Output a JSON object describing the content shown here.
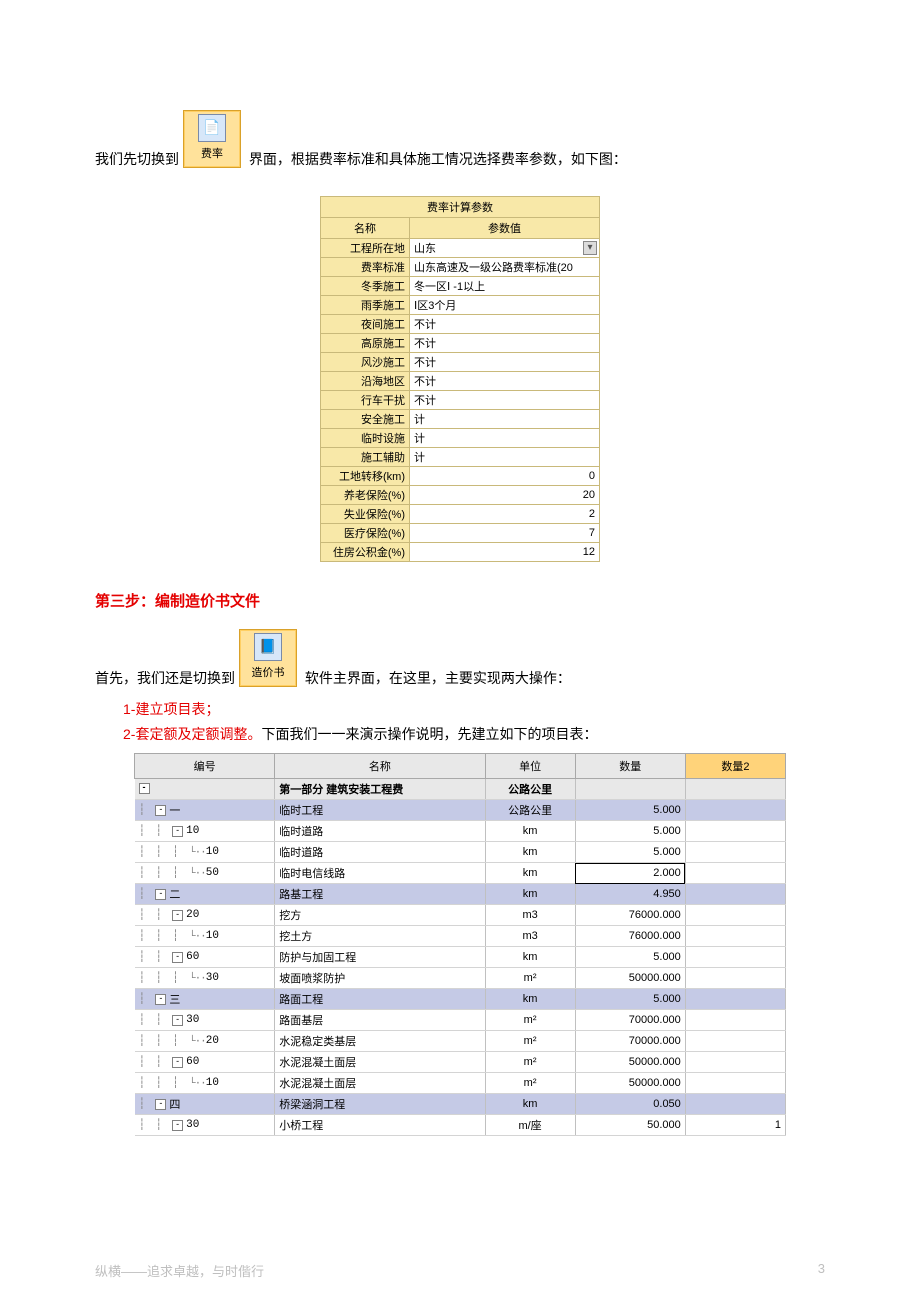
{
  "intro1_a": "我们先切换到",
  "intro1_b": " 界面，根据费率标准和具体施工情况选择费率参数，如下图：",
  "icon1_label": "费率",
  "param_title": "费率计算参数",
  "param_head_name": "名称",
  "param_head_val": "参数值",
  "params": [
    {
      "name": "工程所在地",
      "val": "山东",
      "dd": true,
      "align": "left"
    },
    {
      "name": "费率标准",
      "val": "山东高速及一级公路费率标准(20",
      "align": "left"
    },
    {
      "name": "冬季施工",
      "val": "冬一区Ⅰ -1以上",
      "align": "left"
    },
    {
      "name": "雨季施工",
      "val": "Ⅰ区3个月",
      "align": "left"
    },
    {
      "name": "夜间施工",
      "val": "不计",
      "align": "left"
    },
    {
      "name": "高原施工",
      "val": "不计",
      "align": "left"
    },
    {
      "name": "风沙施工",
      "val": "不计",
      "align": "left"
    },
    {
      "name": "沿海地区",
      "val": "不计",
      "align": "left"
    },
    {
      "name": "行车干扰",
      "val": "不计",
      "align": "left"
    },
    {
      "name": "安全施工",
      "val": "计",
      "align": "left"
    },
    {
      "name": "临时设施",
      "val": "计",
      "align": "left"
    },
    {
      "name": "施工辅助",
      "val": "计",
      "align": "left"
    },
    {
      "name": "工地转移(km)",
      "val": "0",
      "align": "right"
    },
    {
      "name": "养老保险(%)",
      "val": "20",
      "align": "right"
    },
    {
      "name": "失业保险(%)",
      "val": "2",
      "align": "right"
    },
    {
      "name": "医疗保险(%)",
      "val": "7",
      "align": "right"
    },
    {
      "name": "住房公积金(%)",
      "val": "12",
      "align": "right"
    }
  ],
  "step3_title": "第三步：编制造价书文件",
  "intro2_a": "首先，我们还是切换到",
  "icon2_label": "造价书",
  "intro2_b": " 软件主界面，在这里，主要实现两大操作：",
  "bullet1_pref": "1-",
  "bullet1": "建立项目表；",
  "bullet2_pref": "2-",
  "bullet2_a": "套定额及定额调整。",
  "bullet2_b": "下面我们一一来演示操作说明，先建立如下的项目表：",
  "tree_head": {
    "code": "编号",
    "name": "名称",
    "unit": "单位",
    "qty": "数量",
    "qty2": "数量2"
  },
  "tree_rows": [
    {
      "cls": "rtop",
      "indent": 0,
      "exp": "-",
      "codetxt": "",
      "name": "第一部分 建筑安装工程费",
      "unit": "公路公里",
      "qty": "",
      "qty2": ""
    },
    {
      "cls": "rsec",
      "indent": 1,
      "exp": "-",
      "codetxt": "一",
      "name": "临时工程",
      "unit": "公路公里",
      "qty": "5.000",
      "qty2": ""
    },
    {
      "cls": "rnorm",
      "indent": 2,
      "exp": "-",
      "codetxt": "10",
      "name": "临时道路",
      "unit": "km",
      "qty": "5.000",
      "qty2": ""
    },
    {
      "cls": "rnorm",
      "indent": 3,
      "exp": "",
      "codetxt": "10",
      "name": "临时道路",
      "unit": "km",
      "qty": "5.000",
      "qty2": ""
    },
    {
      "cls": "rnorm rhl",
      "indent": 3,
      "exp": "",
      "codetxt": "50",
      "name": "临时电信线路",
      "unit": "km",
      "qty": "2.000",
      "qty2": "",
      "cursor": true
    },
    {
      "cls": "rsec",
      "indent": 1,
      "exp": "-",
      "codetxt": "二",
      "name": "路基工程",
      "unit": "km",
      "qty": "4.950",
      "qty2": ""
    },
    {
      "cls": "rnorm",
      "indent": 2,
      "exp": "-",
      "codetxt": "20",
      "name": "挖方",
      "unit": "m3",
      "qty": "76000.000",
      "qty2": ""
    },
    {
      "cls": "rnorm",
      "indent": 3,
      "exp": "",
      "codetxt": "10",
      "name": "挖土方",
      "unit": "m3",
      "qty": "76000.000",
      "qty2": ""
    },
    {
      "cls": "rnorm",
      "indent": 2,
      "exp": "-",
      "codetxt": "60",
      "name": "防护与加固工程",
      "unit": "km",
      "qty": "5.000",
      "qty2": ""
    },
    {
      "cls": "rnorm",
      "indent": 3,
      "exp": "",
      "codetxt": "30",
      "name": "坡面喷浆防护",
      "unit": "m²",
      "qty": "50000.000",
      "qty2": ""
    },
    {
      "cls": "rsec",
      "indent": 1,
      "exp": "-",
      "codetxt": "三",
      "name": "路面工程",
      "unit": "km",
      "qty": "5.000",
      "qty2": ""
    },
    {
      "cls": "rnorm",
      "indent": 2,
      "exp": "-",
      "codetxt": "30",
      "name": "路面基层",
      "unit": "m²",
      "qty": "70000.000",
      "qty2": ""
    },
    {
      "cls": "rnorm",
      "indent": 3,
      "exp": "",
      "codetxt": "20",
      "name": "水泥稳定类基层",
      "unit": "m²",
      "qty": "70000.000",
      "qty2": ""
    },
    {
      "cls": "rnorm",
      "indent": 2,
      "exp": "-",
      "codetxt": "60",
      "name": "水泥混凝土面层",
      "unit": "m²",
      "qty": "50000.000",
      "qty2": ""
    },
    {
      "cls": "rnorm",
      "indent": 3,
      "exp": "",
      "codetxt": "10",
      "name": "水泥混凝土面层",
      "unit": "m²",
      "qty": "50000.000",
      "qty2": ""
    },
    {
      "cls": "rsec",
      "indent": 1,
      "exp": "-",
      "codetxt": "四",
      "name": "桥梁涵洞工程",
      "unit": "km",
      "qty": "0.050",
      "qty2": ""
    },
    {
      "cls": "rnorm",
      "indent": 2,
      "exp": "-",
      "codetxt": "30",
      "name": "小桥工程",
      "unit": "m/座",
      "qty": "50.000",
      "qty2": "1"
    }
  ],
  "footer_left": "纵横——追求卓越，与时偕行",
  "footer_page": "3"
}
